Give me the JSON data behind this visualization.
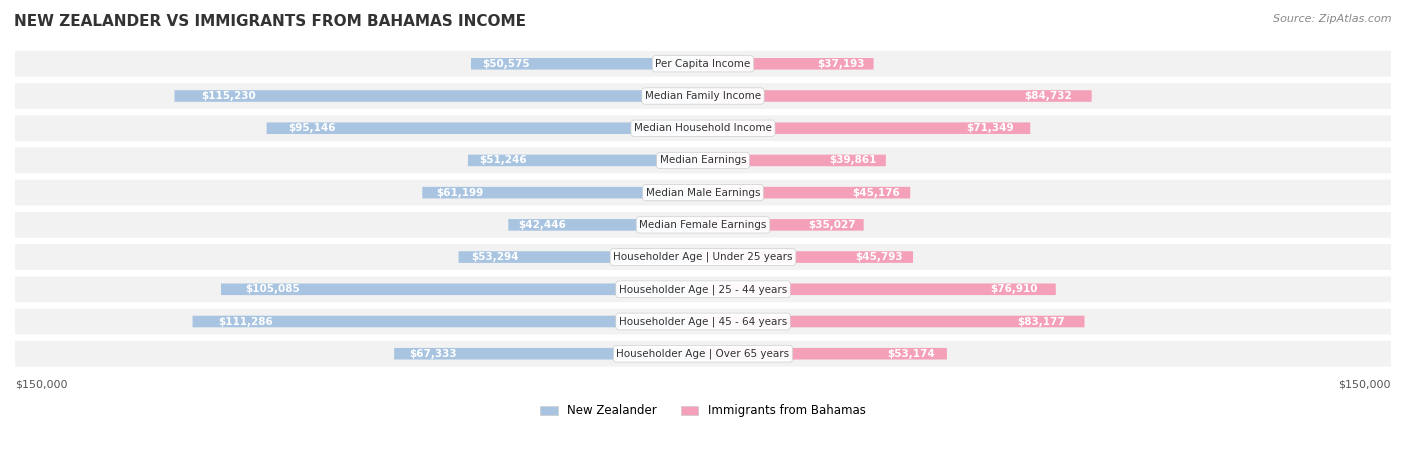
{
  "title": "NEW ZEALANDER VS IMMIGRANTS FROM BAHAMAS INCOME",
  "source": "Source: ZipAtlas.com",
  "categories": [
    "Per Capita Income",
    "Median Family Income",
    "Median Household Income",
    "Median Earnings",
    "Median Male Earnings",
    "Median Female Earnings",
    "Householder Age | Under 25 years",
    "Householder Age | 25 - 44 years",
    "Householder Age | 45 - 64 years",
    "Householder Age | Over 65 years"
  ],
  "nz_values": [
    50575,
    115230,
    95146,
    51246,
    61199,
    42446,
    53294,
    105085,
    111286,
    67333
  ],
  "imm_values": [
    37193,
    84732,
    71349,
    39861,
    45176,
    35027,
    45793,
    76910,
    83177,
    53174
  ],
  "nz_labels": [
    "$50,575",
    "$115,230",
    "$95,146",
    "$51,246",
    "$61,199",
    "$42,446",
    "$53,294",
    "$105,085",
    "$111,286",
    "$67,333"
  ],
  "imm_labels": [
    "$37,193",
    "$84,732",
    "$71,349",
    "$39,861",
    "$45,176",
    "$35,027",
    "$45,793",
    "$76,910",
    "$83,177",
    "$53,174"
  ],
  "nz_color": "#a8c4e0",
  "nz_color_dark": "#6fa8d6",
  "imm_color": "#f4a0b8",
  "imm_color_dark": "#e87aa0",
  "nz_label_color_inside": "#ffffff",
  "nz_label_color_outside": "#888888",
  "imm_label_color_inside": "#ffffff",
  "imm_label_color_outside": "#888888",
  "max_value": 150000,
  "bg_color": "#ffffff",
  "row_bg_color": "#f0f0f0",
  "legend_nz": "New Zealander",
  "legend_imm": "Immigrants from Bahamas",
  "xlabel_left": "$150,000",
  "xlabel_right": "$150,000"
}
